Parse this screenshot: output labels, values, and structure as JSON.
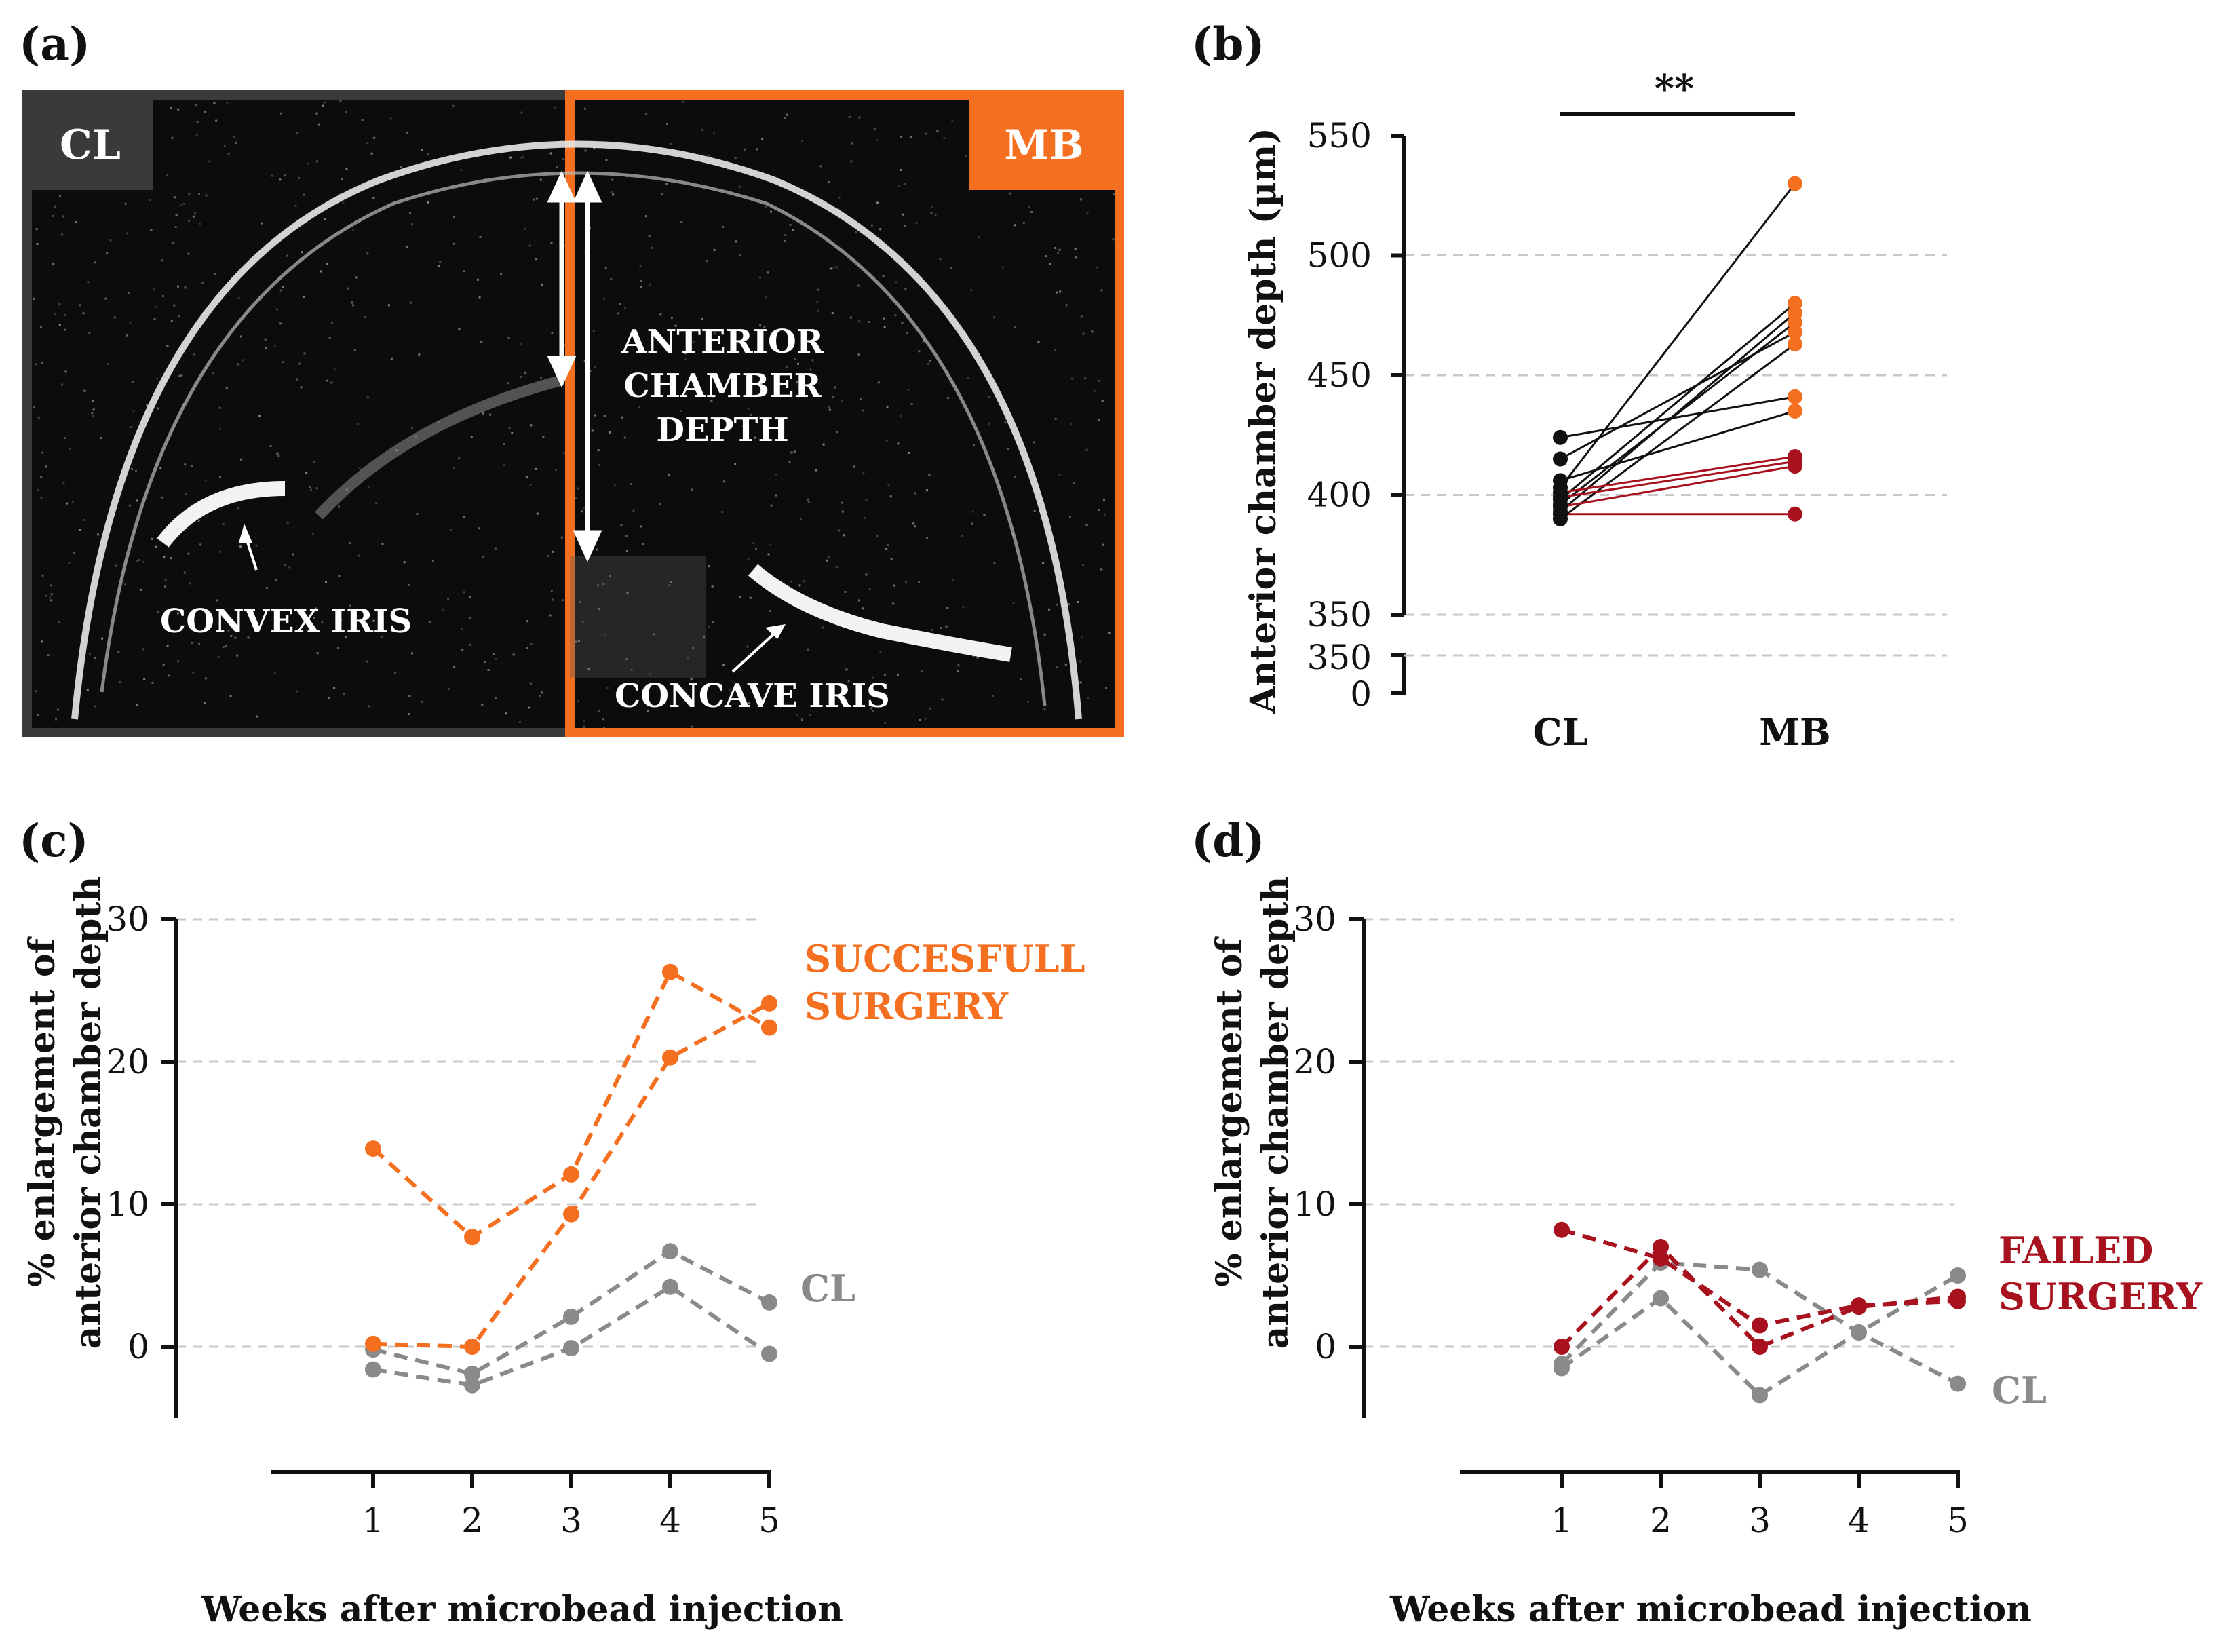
{
  "figure": {
    "panel_a": {
      "letter": "(a)",
      "left_tag": "CL",
      "right_tag": "MB",
      "label_depth": [
        "ANTERIOR",
        "CHAMBER",
        "DEPTH"
      ],
      "label_convex": "CONVEX IRIS",
      "label_concave": "CONCAVE IRIS",
      "colors": {
        "cl": "#3a3a3a",
        "mb": "#f46f1f",
        "image_bg": "#0c0c0c"
      }
    },
    "panel_b": {
      "letter": "(b)",
      "significance": "**"
    },
    "panel_c": {
      "letter": "(c)",
      "annotation_lines": [
        "SUCCESFULL",
        "SURGERY"
      ],
      "cl_label": "CL"
    },
    "panel_d": {
      "letter": "(d)",
      "annotation_lines": [
        "FAILED",
        "SURGERY"
      ],
      "cl_label": "CL"
    }
  },
  "chart_data": [
    {
      "id": "b",
      "type": "scatter",
      "title": "",
      "xlabel": "",
      "ylabel": "Anterior chamber depth (µm)",
      "categories": [
        "CL",
        "MB"
      ],
      "ylim": [
        350,
        550
      ],
      "yticks": [
        550,
        500,
        450,
        400,
        350
      ],
      "broken_axis_ticks": [
        "350",
        "0"
      ],
      "grid": true,
      "colors": {
        "cl_points": "#111111",
        "mb_success": "#f46f1f",
        "mb_failed": "#a8121e",
        "line_success": "#111111",
        "line_failed": "#a8121e"
      },
      "pairs": [
        {
          "cl": 403,
          "mb": 530,
          "outcome": "success"
        },
        {
          "cl": 398,
          "mb": 480,
          "outcome": "success"
        },
        {
          "cl": 393,
          "mb": 476,
          "outcome": "success"
        },
        {
          "cl": 396,
          "mb": 472,
          "outcome": "success"
        },
        {
          "cl": 415,
          "mb": 468,
          "outcome": "success"
        },
        {
          "cl": 390,
          "mb": 463,
          "outcome": "success"
        },
        {
          "cl": 424,
          "mb": 441,
          "outcome": "success"
        },
        {
          "cl": 406,
          "mb": 435,
          "outcome": "success"
        },
        {
          "cl": 401,
          "mb": 416,
          "outcome": "failed"
        },
        {
          "cl": 399,
          "mb": 414,
          "outcome": "failed"
        },
        {
          "cl": 395,
          "mb": 412,
          "outcome": "failed"
        },
        {
          "cl": 392,
          "mb": 392,
          "outcome": "failed"
        }
      ]
    },
    {
      "id": "c",
      "type": "line",
      "title": "",
      "xlabel": "Weeks after microbead injection",
      "ylabel_lines": [
        "% enlargement of",
        "anterior chamber depth"
      ],
      "x": [
        1,
        2,
        3,
        4,
        5
      ],
      "ylim": [
        -5,
        30
      ],
      "yticks": [
        30,
        20,
        10,
        0
      ],
      "grid": true,
      "series": [
        {
          "group": "mb",
          "color": "#f46f1f",
          "values": [
            13.9,
            7.7,
            12.1,
            26.3,
            22.4
          ]
        },
        {
          "group": "mb",
          "color": "#f46f1f",
          "values": [
            0.2,
            0.0,
            9.3,
            20.3,
            24.1
          ]
        },
        {
          "group": "cl",
          "color": "#8a8a8a",
          "values": [
            -0.2,
            -1.9,
            2.1,
            6.7,
            3.1
          ]
        },
        {
          "group": "cl",
          "color": "#8a8a8a",
          "values": [
            -1.6,
            -2.7,
            -0.1,
            4.2,
            -0.5
          ]
        }
      ]
    },
    {
      "id": "d",
      "type": "line",
      "title": "",
      "xlabel": "Weeks after microbead injection",
      "ylabel_lines": [
        "% enlargement of",
        "anterior chamber depth"
      ],
      "x": [
        1,
        2,
        3,
        4,
        5
      ],
      "ylim": [
        -5,
        30
      ],
      "yticks": [
        30,
        20,
        10,
        0
      ],
      "grid": true,
      "series": [
        {
          "group": "mb",
          "color": "#a8121e",
          "values": [
            8.2,
            6.2,
            1.5,
            2.9,
            3.2
          ]
        },
        {
          "group": "mb",
          "color": "#a8121e",
          "values": [
            0.0,
            7.0,
            0.0,
            2.8,
            3.5
          ]
        },
        {
          "group": "cl",
          "color": "#8a8a8a",
          "values": [
            -1.2,
            5.9,
            5.4,
            1.0,
            5.0
          ]
        },
        {
          "group": "cl",
          "color": "#8a8a8a",
          "values": [
            -1.5,
            3.4,
            -3.4,
            1.0,
            -2.6
          ]
        }
      ]
    }
  ]
}
